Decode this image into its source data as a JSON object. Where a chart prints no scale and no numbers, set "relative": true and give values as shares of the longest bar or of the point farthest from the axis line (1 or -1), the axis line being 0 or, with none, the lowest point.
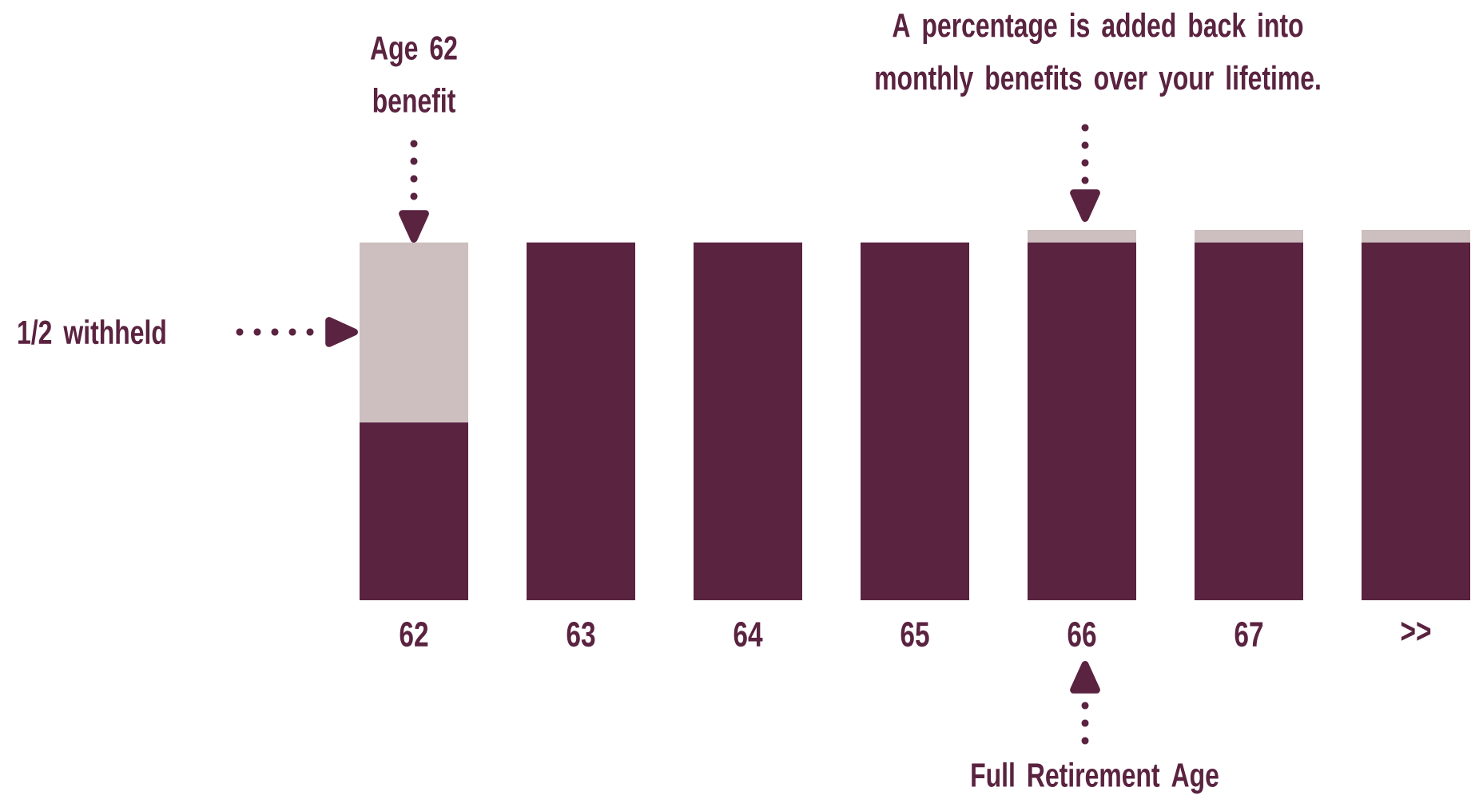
{
  "chart_data": {
    "type": "bar",
    "stacked": true,
    "relative": true,
    "categories": [
      "62",
      "63",
      "64",
      "65",
      "66",
      "67",
      ">>"
    ],
    "series": [
      {
        "color": "#5a2340",
        "values": [
          0.48,
          0.966,
          0.966,
          0.966,
          0.966,
          0.966,
          0.966
        ]
      },
      {
        "color": "#cdbfbf",
        "values": [
          0.486,
          0,
          0,
          0,
          0.034,
          0.034,
          0.034
        ]
      }
    ],
    "annotations": [
      "Age 62 benefit",
      "1/2 withheld",
      "A percentage is added back into monthly benefits over your lifetime.",
      "Full Retirement Age"
    ]
  }
}
